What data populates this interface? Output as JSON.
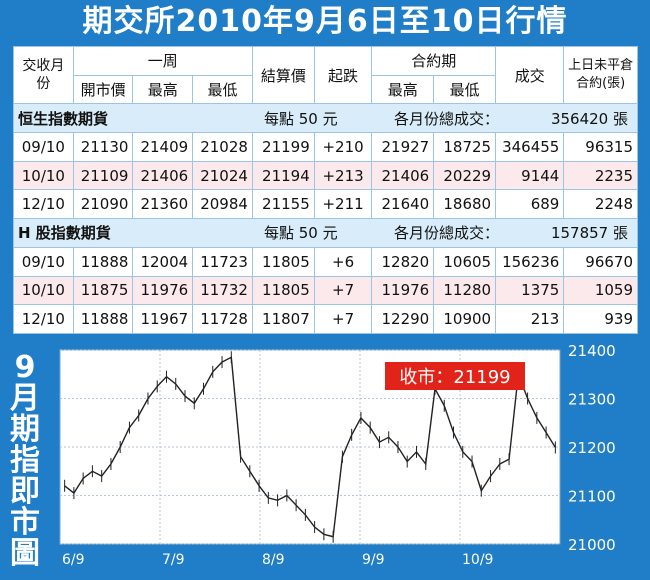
{
  "title": "期交所2010年9月6日至10日行情",
  "table": {
    "header": {
      "contract_month": "交收月份",
      "week": "一周",
      "open": "開市價",
      "high": "最高",
      "low": "最低",
      "settle": "結算價",
      "change": "起跌",
      "contract_period": "合約期",
      "cp_high": "最高",
      "cp_low": "最低",
      "volume": "成交",
      "oi": "上日未平倉合約(張)"
    },
    "groups": [
      {
        "name": "恒生指數期貨",
        "per_point": "每點 50 元",
        "total_label": "各月份總成交：",
        "total_value": "356420 張",
        "rows": [
          {
            "month": "09/10",
            "open": "21130",
            "high": "21409",
            "low": "21028",
            "settle": "21199",
            "change": "+210",
            "cp_high": "21927",
            "cp_low": "18725",
            "volume": "346455",
            "oi": "96315"
          },
          {
            "month": "10/10",
            "open": "21109",
            "high": "21406",
            "low": "21024",
            "settle": "21194",
            "change": "+213",
            "cp_high": "21406",
            "cp_low": "20229",
            "volume": "9144",
            "oi": "2235"
          },
          {
            "month": "12/10",
            "open": "21090",
            "high": "21360",
            "low": "20984",
            "settle": "21155",
            "change": "+211",
            "cp_high": "21640",
            "cp_low": "18680",
            "volume": "689",
            "oi": "2248"
          }
        ]
      },
      {
        "name": "H 股指數期貨",
        "per_point": "每點 50 元",
        "total_label": "各月份總成交：",
        "total_value": "157857 張",
        "rows": [
          {
            "month": "09/10",
            "open": "11888",
            "high": "12004",
            "low": "11723",
            "settle": "11805",
            "change": "+6",
            "cp_high": "12820",
            "cp_low": "10605",
            "volume": "156236",
            "oi": "96670"
          },
          {
            "month": "10/10",
            "open": "11875",
            "high": "11976",
            "low": "11732",
            "settle": "11805",
            "change": "+7",
            "cp_high": "11976",
            "cp_low": "11280",
            "volume": "1375",
            "oi": "1059"
          },
          {
            "month": "12/10",
            "open": "11888",
            "high": "11967",
            "low": "11728",
            "settle": "11807",
            "change": "+7",
            "cp_high": "12290",
            "cp_low": "10900",
            "volume": "213",
            "oi": "939"
          }
        ]
      }
    ]
  },
  "chart_label_chars": [
    "9",
    "月",
    "期",
    "指",
    "即",
    "市",
    "圖"
  ],
  "chart_data": {
    "type": "line",
    "title": "",
    "xlabel": "",
    "ylabel": "",
    "ylim": [
      21000,
      21400
    ],
    "yticks": [
      21400,
      21300,
      21200,
      21100,
      21000
    ],
    "xticks": [
      "6/9",
      "7/9",
      "8/9",
      "9/9",
      "10/9"
    ],
    "grid": true,
    "close_label": "收市：21199",
    "series": [
      {
        "values": [
          21120,
          21105,
          21135,
          21150,
          21140,
          21165,
          21200,
          21240,
          21265,
          21300,
          21325,
          21345,
          21330,
          21305,
          21290,
          21320,
          21355,
          21375,
          21385,
          21180,
          21150,
          21120,
          21095,
          21090,
          21100,
          21080,
          21060,
          21035,
          21020,
          21015,
          21180,
          21225,
          21260,
          21240,
          21210,
          21220,
          21200,
          21170,
          21190,
          21165,
          21320,
          21285,
          21230,
          21190,
          21170,
          21110,
          21140,
          21165,
          21175,
          21350,
          21300,
          21260,
          21230,
          21199
        ]
      }
    ]
  }
}
